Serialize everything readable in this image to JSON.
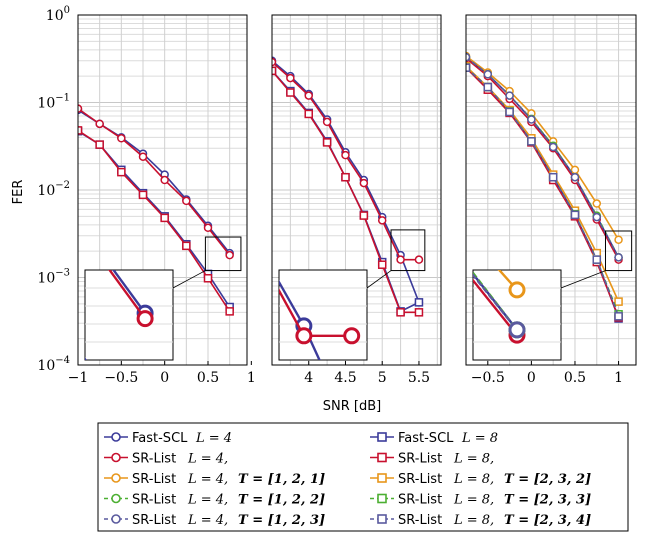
{
  "chart_data": {
    "type": "line",
    "ylabel": "FER",
    "xlabel": "SNR [dB]",
    "yscale": "log",
    "ylim": [
      0.0001,
      1
    ],
    "ytick_labels": [
      "10^-4",
      "10^-3",
      "10^-2",
      "10^-1",
      "10^0"
    ],
    "grid": true,
    "legend_position": "bottom",
    "colors": {
      "fast_scl": "#3b3b9a",
      "sr_list": "#c8102e",
      "T_orange": "#e8961a",
      "T_green": "#4caf32",
      "T_slate": "#5a5a9e"
    },
    "legend": [
      {
        "label": "Fast-SCL",
        "math": "L = 4",
        "T": "",
        "color": "#3b3b9a",
        "marker": "circle",
        "dash": false
      },
      {
        "label": "Fast-SCL",
        "math": "L = 8",
        "T": "",
        "color": "#3b3b9a",
        "marker": "square",
        "dash": false
      },
      {
        "label": "SR-List",
        "math": "L = 4,",
        "T": "",
        "color": "#c8102e",
        "marker": "circle",
        "dash": false
      },
      {
        "label": "SR-List",
        "math": "L = 8,",
        "T": "",
        "color": "#c8102e",
        "marker": "square",
        "dash": false
      },
      {
        "label": "SR-List",
        "math": "L = 4,",
        "T": "T = [1, 2, 1]",
        "color": "#e8961a",
        "marker": "circle",
        "dash": false
      },
      {
        "label": "SR-List",
        "math": "L = 8,",
        "T": "T = [2, 3, 2]",
        "color": "#e8961a",
        "marker": "square",
        "dash": false
      },
      {
        "label": "SR-List",
        "math": "L = 4,",
        "T": "T = [1, 2, 2]",
        "color": "#4caf32",
        "marker": "circle",
        "dash": true
      },
      {
        "label": "SR-List",
        "math": "L = 8,",
        "T": "T = [2, 3, 3]",
        "color": "#4caf32",
        "marker": "square",
        "dash": true
      },
      {
        "label": "SR-List",
        "math": "L = 4,",
        "T": "T = [1, 2, 3]",
        "color": "#5a5a9e",
        "marker": "circle",
        "dash": true
      },
      {
        "label": "SR-List",
        "math": "L = 8,",
        "T": "T = [2, 3, 4]",
        "color": "#5a5a9e",
        "marker": "square",
        "dash": true
      }
    ],
    "panels": [
      {
        "xlim": [
          -1,
          0.95
        ],
        "xticks": [
          -1,
          -0.5,
          0,
          0.5,
          1
        ],
        "xtick_labels": [
          "−1",
          "−0.5",
          "0",
          "0.5",
          "1"
        ],
        "x": [
          -1,
          -0.75,
          -0.5,
          -0.25,
          0,
          0.25,
          0.5,
          0.75
        ],
        "series": [
          {
            "values": [
              0.082,
              0.057,
              0.04,
              0.026,
              0.015,
              0.0078,
              0.0039,
              0.0019
            ],
            "color": "#3b3b9a",
            "marker": "circle",
            "dash": false
          },
          {
            "values": [
              0.047,
              0.033,
              0.017,
              0.0092,
              0.005,
              0.0024,
              0.0011,
              0.00046
            ],
            "color": "#3b3b9a",
            "marker": "square",
            "dash": false
          },
          {
            "values": [
              0.085,
              0.057,
              0.039,
              0.024,
              0.013,
              0.0075,
              0.0037,
              0.0018
            ],
            "color": "#c8102e",
            "marker": "circle",
            "dash": false
          },
          {
            "values": [
              0.048,
              0.033,
              0.016,
              0.0088,
              0.0048,
              0.0023,
              0.00098,
              0.00041
            ],
            "color": "#c8102e",
            "marker": "square",
            "dash": false
          }
        ]
      },
      {
        "xlim": [
          3.5,
          5.8
        ],
        "xticks": [
          4,
          4.5,
          5,
          5.5
        ],
        "xtick_labels": [
          "4",
          "4.5",
          "5",
          "5.5"
        ],
        "x": [
          3.5,
          3.75,
          4,
          4.25,
          4.5,
          4.75,
          5,
          5.25,
          5.5
        ],
        "series": [
          {
            "values": [
              0.3,
              0.2,
              0.125,
              0.064,
              0.027,
              0.013,
              0.0049,
              0.0018,
              0.00052
            ],
            "color": "#3b3b9a",
            "marker": "circle",
            "dash": false
          },
          {
            "values": [
              0.23,
              0.135,
              0.076,
              0.036,
              0.014,
              0.0052,
              0.0015,
              0.00041,
              0.00052
            ],
            "color": "#3b3b9a",
            "marker": "square",
            "dash": false
          },
          {
            "values": [
              0.29,
              0.19,
              0.12,
              0.06,
              0.025,
              0.012,
              0.0045,
              0.0016,
              0.0016
            ],
            "color": "#c8102e",
            "marker": "circle",
            "dash": false
          },
          {
            "values": [
              0.23,
              0.13,
              0.074,
              0.035,
              0.014,
              0.0051,
              0.0014,
              0.0004,
              0.0004
            ],
            "color": "#c8102e",
            "marker": "square",
            "dash": false
          }
        ]
      },
      {
        "xlim": [
          -0.75,
          1.2
        ],
        "xticks": [
          -0.5,
          0,
          0.5,
          1
        ],
        "xtick_labels": [
          "−0.5",
          "0",
          "0.5",
          "1"
        ],
        "x": [
          -0.75,
          -0.5,
          -0.25,
          0,
          0.25,
          0.5,
          0.75,
          1
        ],
        "series": [
          {
            "values": [
              0.33,
              0.21,
              0.12,
              0.064,
              0.032,
              0.014,
              0.005,
              0.0017
            ],
            "color": "#3b3b9a",
            "marker": "circle",
            "dash": false
          },
          {
            "values": [
              0.25,
              0.15,
              0.078,
              0.036,
              0.014,
              0.0052,
              0.0016,
              0.00034
            ],
            "color": "#3b3b9a",
            "marker": "square",
            "dash": false
          },
          {
            "values": [
              0.32,
              0.2,
              0.11,
              0.06,
              0.03,
              0.013,
              0.0046,
              0.0016
            ],
            "color": "#c8102e",
            "marker": "circle",
            "dash": false
          },
          {
            "values": [
              0.25,
              0.14,
              0.076,
              0.035,
              0.013,
              0.005,
              0.0015,
              0.00035
            ],
            "color": "#c8102e",
            "marker": "square",
            "dash": false
          },
          {
            "values": [
              0.34,
              0.22,
              0.135,
              0.075,
              0.036,
              0.017,
              0.007,
              0.0027
            ],
            "color": "#e8961a",
            "marker": "circle",
            "dash": false
          },
          {
            "values": [
              0.26,
              0.15,
              0.082,
              0.039,
              0.015,
              0.0058,
              0.0019,
              0.00053
            ],
            "color": "#e8961a",
            "marker": "square",
            "dash": false
          },
          {
            "values": [
              0.33,
              0.21,
              0.12,
              0.065,
              0.032,
              0.014,
              0.0051,
              0.0017
            ],
            "color": "#4caf32",
            "marker": "circle",
            "dash": true
          },
          {
            "values": [
              0.25,
              0.15,
              0.079,
              0.036,
              0.014,
              0.0053,
              0.0016,
              0.00038
            ],
            "color": "#4caf32",
            "marker": "square",
            "dash": true
          },
          {
            "values": [
              0.33,
              0.21,
              0.12,
              0.064,
              0.031,
              0.014,
              0.0049,
              0.0017
            ],
            "color": "#5a5a9e",
            "marker": "circle",
            "dash": true
          },
          {
            "values": [
              0.25,
              0.15,
              0.078,
              0.036,
              0.014,
              0.0052,
              0.0016,
              0.00036
            ],
            "color": "#5a5a9e",
            "marker": "square",
            "dash": true
          }
        ]
      }
    ]
  }
}
